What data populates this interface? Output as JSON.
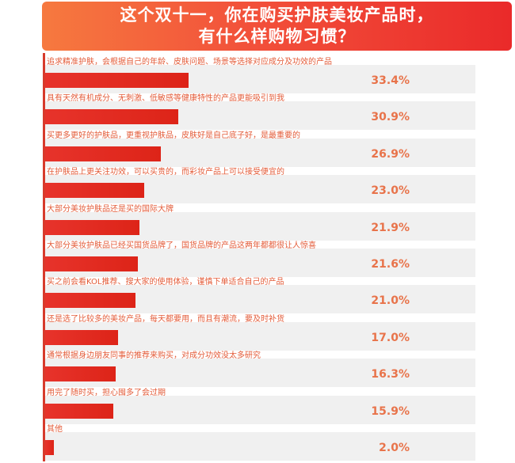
{
  "chart_data": {
    "type": "bar",
    "orientation": "horizontal",
    "title_lines": [
      "这个双十一，你在购买护肤美妆产品时，",
      "有什么样购物习惯？"
    ],
    "unit": "%",
    "categories": [
      "追求精准护肤，会根据自己的年龄、皮肤问题、场景等选择对应成分及功效的产品",
      "具有天然有机成分、无刺激、低敏感等健康特性的产品更能吸引到我",
      "买更多更好的护肤品，更重视护肤品，皮肤好是自己底子好，是最重要的",
      "在护肤品上更关注功效，可以买贵的，而彩妆产品上可以接受便宜的",
      "大部分美妆护肤品还是买的国际大牌",
      "大部分美妆护肤品已经买国货品牌了，国货品牌的产品这两年都都很让人惊喜",
      "买之前会看KOL推荐、搜大家的使用体验，谨慎下单适合自己的产品",
      "还是选了比较多的美妆产品，每天都要用，而且有潮流，要及时补货",
      "通常根据身边朋友同事的推荐来购买，对成分功效没太多研究",
      "用完了随时买，担心囤多了会过期",
      "其他"
    ],
    "values": [
      33.4,
      30.9,
      26.9,
      23.0,
      21.9,
      21.6,
      21.0,
      17.0,
      16.3,
      15.9,
      2.0
    ],
    "value_labels": [
      "33.4%",
      "30.9%",
      "26.9%",
      "23.0%",
      "21.9%",
      "21.6%",
      "21.0%",
      "17.0%",
      "16.3%",
      "15.9%",
      "2.0%"
    ],
    "xlim": [
      0,
      100
    ],
    "colors": {
      "bar": "#e32b22",
      "label": "#e35b38",
      "value": "#e8734a",
      "track": "#f0f0f0",
      "banner_start": "#f6793f",
      "banner_end": "#ea2a2a"
    }
  }
}
